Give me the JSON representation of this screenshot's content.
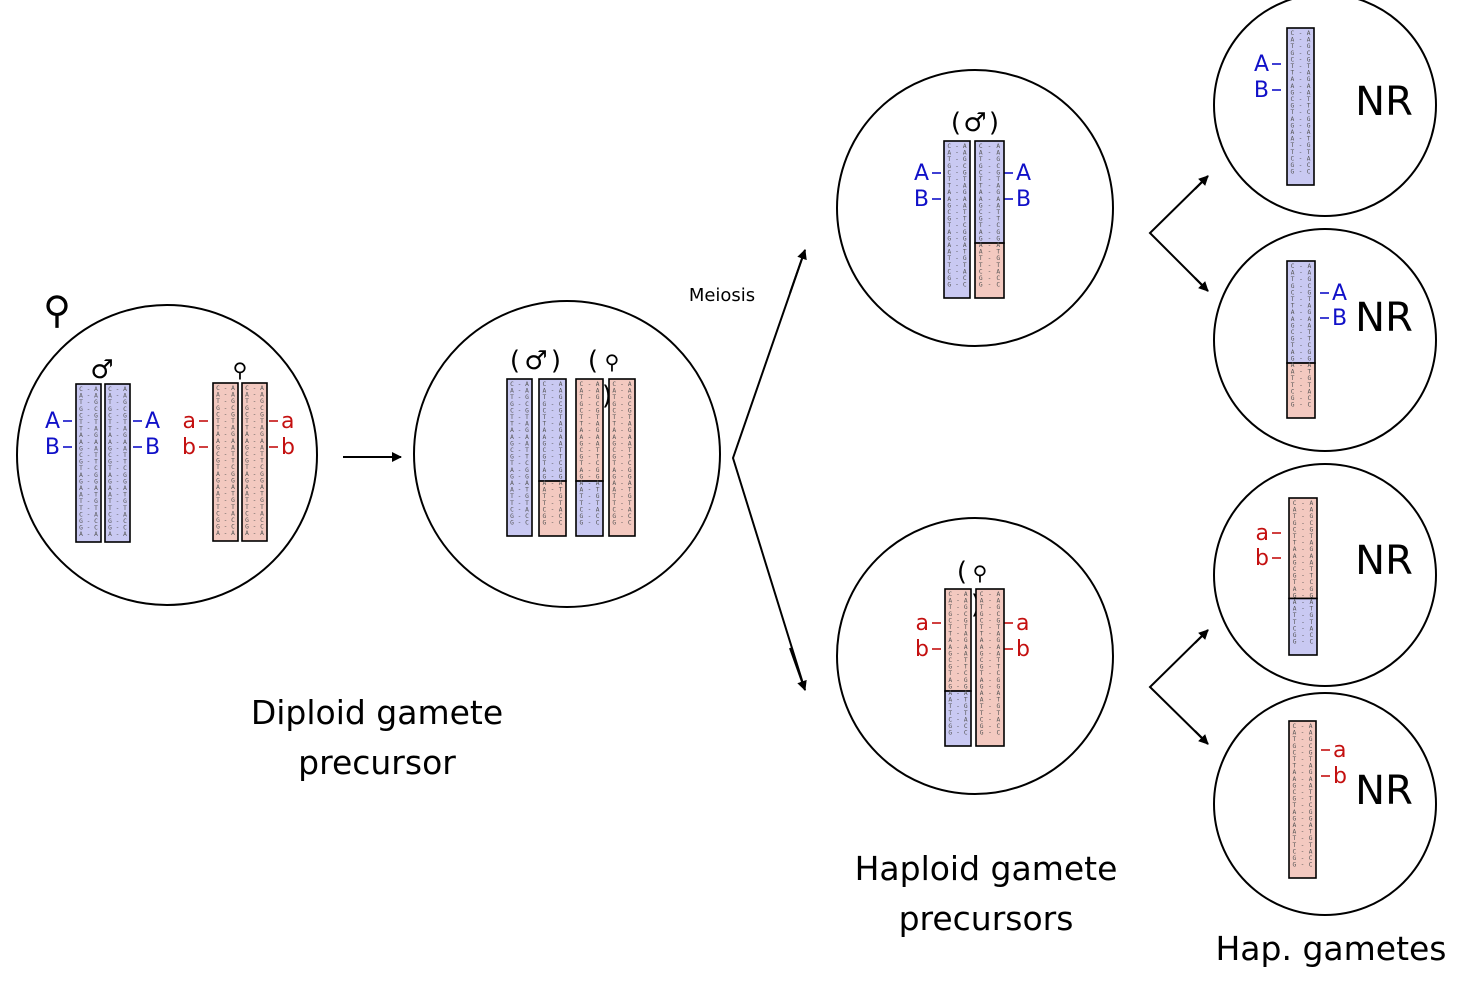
{
  "symbols": {
    "hermaphrodite": "⚲",
    "male": "♂"
  },
  "process_label": "Meiosis",
  "labels": {
    "diploid": [
      "Diploid gamete",
      "precursor"
    ],
    "haploid": [
      "Haploid gamete",
      "precursors"
    ],
    "gametes": "Hap. gametes"
  },
  "alleles": {
    "A": "A",
    "B": "B",
    "a": "a",
    "b": "b"
  },
  "gamete_type": "NR",
  "strand_sequence": "CATGCTTAAGCGTAGAATTCGGATGTAC",
  "colors": {
    "paternal_fill": "#c9c9f2",
    "maternal_fill": "#f3c9c0",
    "paternal_text": "#1010c8",
    "maternal_text": "#c41010",
    "outline": "#000000"
  }
}
